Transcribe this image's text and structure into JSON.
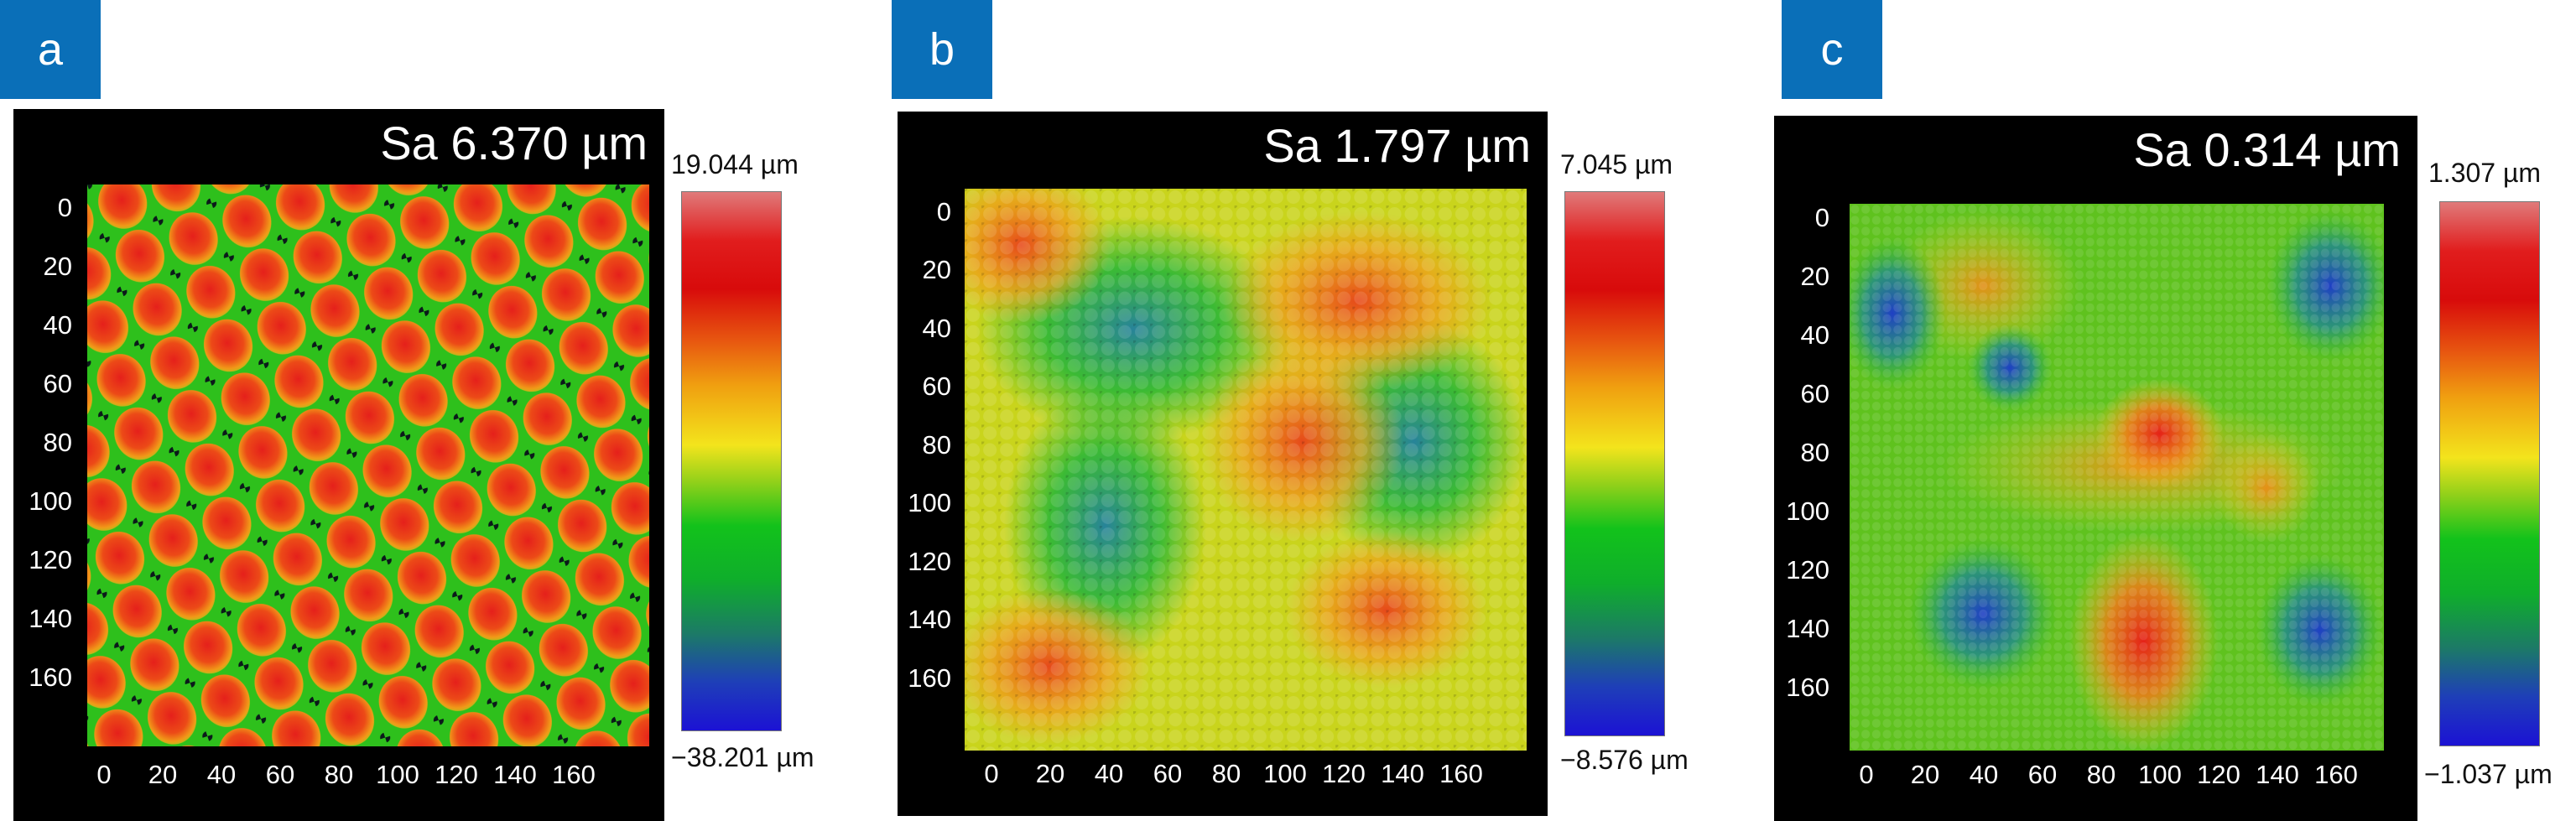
{
  "panels": [
    {
      "label": "a",
      "sa": "Sa 6.370 µm",
      "cbar_max": "19.044 µm",
      "cbar_min": "−38.201 µm"
    },
    {
      "label": "b",
      "sa": "Sa 1.797 µm",
      "cbar_max": "7.045 µm",
      "cbar_min": "−8.576 µm"
    },
    {
      "label": "c",
      "sa": "Sa 0.314 µm",
      "cbar_max": "1.307 µm",
      "cbar_min": "−1.037 µm"
    }
  ],
  "axes": {
    "y_ticks": [
      "0",
      "20",
      "40",
      "60",
      "80",
      "100",
      "120",
      "140",
      "160"
    ],
    "x_ticks": [
      "0",
      "20",
      "40",
      "60",
      "80",
      "100",
      "120",
      "140",
      "160"
    ]
  },
  "colors": {
    "tag_background": "#0a6fb8",
    "plot_background": "#000000"
  }
}
